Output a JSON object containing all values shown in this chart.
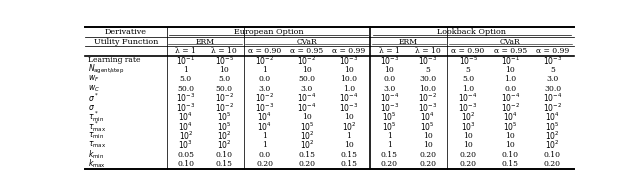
{
  "col_headers_row3": [
    "λ = 1",
    "λ = 10",
    "α = 0.90",
    "α = 0.95",
    "α = 0.99",
    "λ = 1",
    "λ = 10",
    "α = 0.90",
    "α = 0.95",
    "α = 0.99"
  ],
  "rows": [
    [
      "$10^{-1}$",
      "$10^{-5}$",
      "$10^{-2}$",
      "$10^{-2}$",
      "$10^{-3}$",
      "$10^{-3}$",
      "$10^{-3}$",
      "$10^{-5}$",
      "$10^{-1}$",
      "$10^{-3}$"
    ],
    [
      "1",
      "10",
      "1",
      "10",
      "10",
      "10",
      "5",
      "5",
      "10",
      "5"
    ],
    [
      "5.0",
      "5.0",
      "0.0",
      "50.0",
      "10.0",
      "0.0",
      "30.0",
      "5.0",
      "1.0",
      "3.0"
    ],
    [
      "50.0",
      "50.0",
      "3.0",
      "3.0",
      "1.0",
      "3.0",
      "10.0",
      "1.0",
      "0.0",
      "30.0"
    ],
    [
      "$10^{-3}$",
      "$10^{-2}$",
      "$10^{-2}$",
      "$10^{-4}$",
      "$10^{-4}$",
      "$10^{-4}$",
      "$10^{-2}$",
      "$10^{-4}$",
      "$10^{-4}$",
      "$10^{-4}$"
    ],
    [
      "$10^{-3}$",
      "$10^{-2}$",
      "$10^{-3}$",
      "$10^{-4}$",
      "$10^{-3}$",
      "$10^{-3}$",
      "$10^{-3}$",
      "$10^{-3}$",
      "$10^{-2}$",
      "$10^{-2}$"
    ],
    [
      "$10^{4}$",
      "$10^{5}$",
      "$10^{4}$",
      "10",
      "10",
      "$10^{5}$",
      "$10^{4}$",
      "$10^{2}$",
      "$10^{4}$",
      "$10^{4}$"
    ],
    [
      "$10^{4}$",
      "$10^{5}$",
      "$10^{4}$",
      "$10^{5}$",
      "$10^{2}$",
      "$10^{5}$",
      "$10^{5}$",
      "$10^{3}$",
      "$10^{5}$",
      "$10^{5}$"
    ],
    [
      "$10^{2}$",
      "$10^{2}$",
      "1",
      "$10^{2}$",
      "1",
      "1",
      "10",
      "10",
      "10",
      "$10^{2}$"
    ],
    [
      "$10^{3}$",
      "$10^{2}$",
      "1",
      "$10^{2}$",
      "10",
      "1",
      "10",
      "10",
      "10",
      "$10^{2}$"
    ],
    [
      "0.05",
      "0.10",
      "0.0",
      "0.15",
      "0.15",
      "0.15",
      "0.20",
      "0.20",
      "0.10",
      "0.10"
    ],
    [
      "0.10",
      "0.15",
      "0.20",
      "0.20",
      "0.15",
      "0.20",
      "0.20",
      "0.20",
      "0.15",
      "0.20"
    ]
  ],
  "row_label_display": [
    "Learning rate",
    "$N_{\\mathrm{agent/step}}$",
    "$w_F$",
    "$w_C$",
    "$\\sigma^*$",
    "$\\sigma$",
    "$\\tau^*_{\\min}$",
    "$\\tau^*_{\\max}$",
    "$\\tau_{\\min}$",
    "$\\tau_{\\max}$",
    "$k_{\\min}$",
    "$k_{\\max}$"
  ],
  "figsize": [
    6.4,
    1.92
  ],
  "dpi": 100
}
